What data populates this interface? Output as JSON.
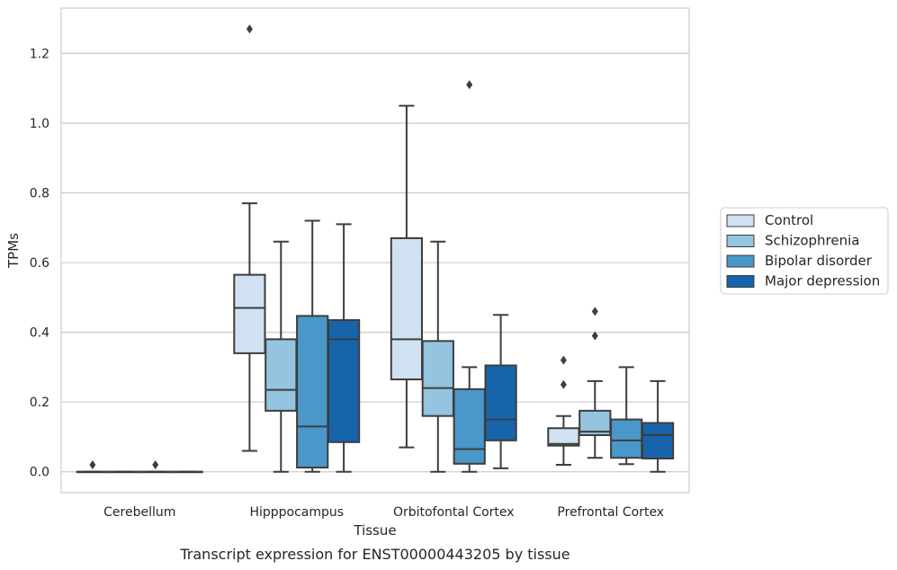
{
  "chart_data": {
    "type": "boxplot",
    "title": "Transcript expression for ENST00000443205 by tissue",
    "xlabel": "Tissue",
    "ylabel": "TPMs",
    "ylim": [
      -0.06,
      1.33
    ],
    "yticks": [
      0.0,
      0.2,
      0.4,
      0.6,
      0.8,
      1.0,
      1.2
    ],
    "ytick_labels": [
      "0.0",
      "0.2",
      "0.4",
      "0.6",
      "0.8",
      "1.0",
      "1.2"
    ],
    "grid": "horizontal",
    "legend_position": "right",
    "categories": [
      "Cerebellum",
      "Hipppocampus",
      "Orbitofontal Cortex",
      "Prefrontal Cortex"
    ],
    "series": [
      {
        "name": "Control",
        "color": "#d0e1f2",
        "boxes": [
          {
            "min": 0.0,
            "q1": 0.0,
            "median": 0.0,
            "q3": 0.0,
            "max": 0.0,
            "outliers": [
              0.02
            ]
          },
          {
            "min": 0.06,
            "q1": 0.34,
            "median": 0.47,
            "q3": 0.565,
            "max": 0.77,
            "outliers": [
              1.27
            ]
          },
          {
            "min": 0.07,
            "q1": 0.265,
            "median": 0.38,
            "q3": 0.67,
            "max": 1.05,
            "outliers": []
          },
          {
            "min": 0.02,
            "q1": 0.075,
            "median": 0.08,
            "q3": 0.125,
            "max": 0.16,
            "outliers": [
              0.25,
              0.32
            ]
          }
        ]
      },
      {
        "name": "Schizophrenia",
        "color": "#94c4df",
        "boxes": [
          {
            "min": 0.0,
            "q1": 0.0,
            "median": 0.0,
            "q3": 0.0,
            "max": 0.0,
            "outliers": []
          },
          {
            "min": 0.0,
            "q1": 0.175,
            "median": 0.235,
            "q3": 0.38,
            "max": 0.66,
            "outliers": []
          },
          {
            "min": 0.0,
            "q1": 0.16,
            "median": 0.24,
            "q3": 0.375,
            "max": 0.66,
            "outliers": []
          },
          {
            "min": 0.04,
            "q1": 0.105,
            "median": 0.115,
            "q3": 0.175,
            "max": 0.26,
            "outliers": [
              0.39,
              0.46
            ]
          }
        ]
      },
      {
        "name": "Bipolar disorder",
        "color": "#4a98c9",
        "boxes": [
          {
            "min": 0.0,
            "q1": 0.0,
            "median": 0.0,
            "q3": 0.0,
            "max": 0.0,
            "outliers": [
              0.02
            ]
          },
          {
            "min": 0.0,
            "q1": 0.012,
            "median": 0.13,
            "q3": 0.447,
            "max": 0.72,
            "outliers": []
          },
          {
            "min": 0.0,
            "q1": 0.023,
            "median": 0.065,
            "q3": 0.237,
            "max": 0.3,
            "outliers": [
              1.11
            ]
          },
          {
            "min": 0.022,
            "q1": 0.04,
            "median": 0.09,
            "q3": 0.15,
            "max": 0.3,
            "outliers": []
          }
        ]
      },
      {
        "name": "Major depression",
        "color": "#1764ab",
        "boxes": [
          {
            "min": 0.0,
            "q1": 0.0,
            "median": 0.0,
            "q3": 0.0,
            "max": 0.0,
            "outliers": []
          },
          {
            "min": 0.0,
            "q1": 0.085,
            "median": 0.38,
            "q3": 0.435,
            "max": 0.71,
            "outliers": []
          },
          {
            "min": 0.01,
            "q1": 0.09,
            "median": 0.15,
            "q3": 0.305,
            "max": 0.45,
            "outliers": []
          },
          {
            "min": 0.0,
            "q1": 0.038,
            "median": 0.105,
            "q3": 0.14,
            "max": 0.26,
            "outliers": []
          }
        ]
      }
    ]
  }
}
